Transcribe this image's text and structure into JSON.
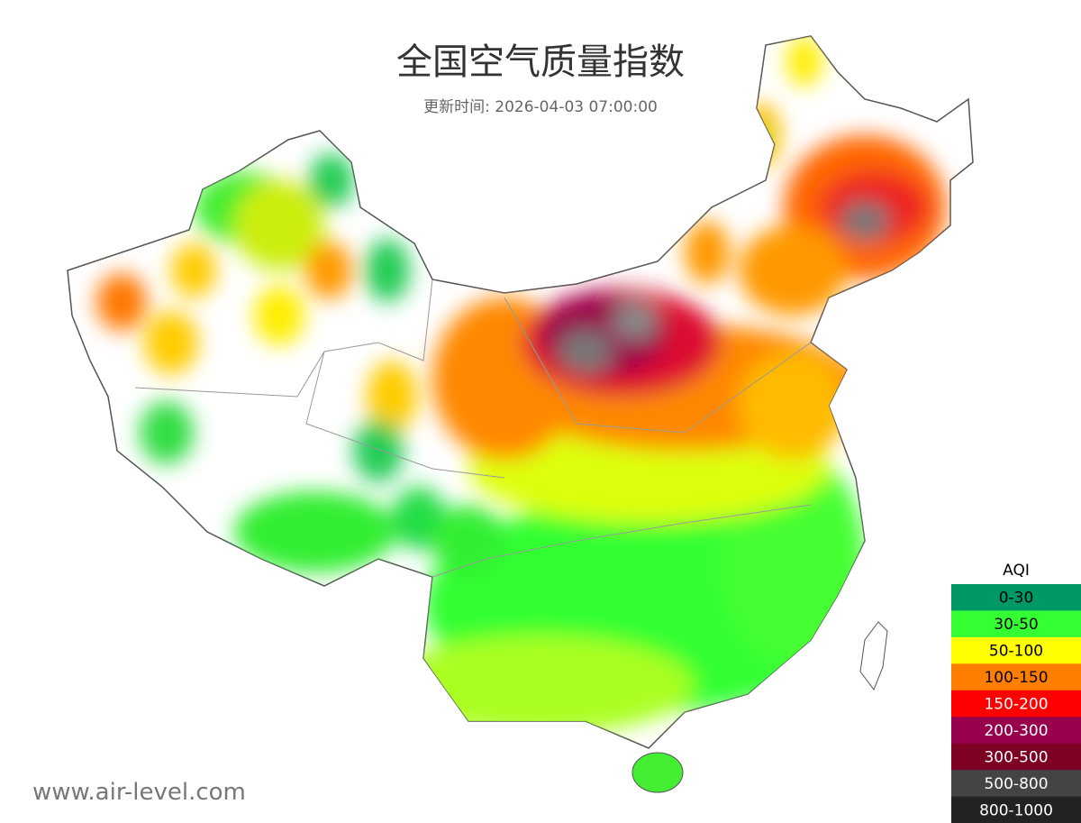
{
  "header": {
    "title": "全国空气质量指数",
    "subtitle": "更新时间: 2026-04-03 07:00:00"
  },
  "legend": {
    "title": "AQI",
    "items": [
      {
        "label": "0-30",
        "color": "#009966",
        "text_color": "#000000"
      },
      {
        "label": "30-50",
        "color": "#33ff33",
        "text_color": "#000000"
      },
      {
        "label": "50-100",
        "color": "#ffff00",
        "text_color": "#000000"
      },
      {
        "label": "100-150",
        "color": "#ff7e00",
        "text_color": "#000000"
      },
      {
        "label": "150-200",
        "color": "#ff0000",
        "text_color": "#ffffff"
      },
      {
        "label": "200-300",
        "color": "#99004c",
        "text_color": "#ffffff"
      },
      {
        "label": "300-500",
        "color": "#7e0023",
        "text_color": "#ffffff"
      },
      {
        "label": "500-800",
        "color": "#444444",
        "text_color": "#ffffff"
      },
      {
        "label": "800-1000",
        "color": "#222222",
        "text_color": "#ffffff"
      }
    ]
  },
  "footer": {
    "watermark": "www.air-level.com"
  }
}
